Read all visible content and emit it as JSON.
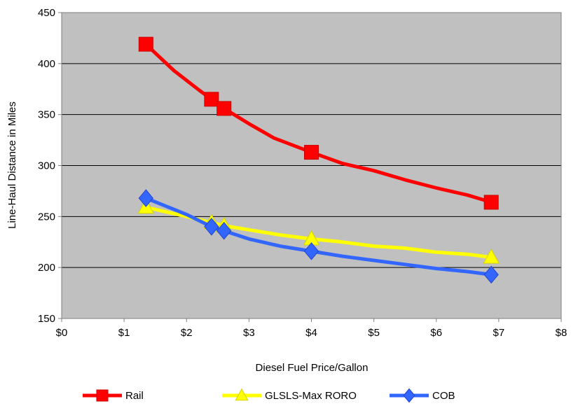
{
  "chart_data": {
    "type": "line",
    "xlabel": "Diesel Fuel Price/Gallon",
    "ylabel": "Line-Haul Distance in Miles",
    "xlim": [
      0,
      8
    ],
    "ylim": [
      150,
      450
    ],
    "x_ticks": [
      0,
      1,
      2,
      3,
      4,
      5,
      6,
      7,
      8
    ],
    "x_tick_labels": [
      "$0",
      "$1",
      "$2",
      "$3",
      "$4",
      "$5",
      "$6",
      "$7",
      "$8"
    ],
    "y_ticks": [
      150,
      200,
      250,
      300,
      350,
      400,
      450
    ],
    "y_tick_labels": [
      "150",
      "200",
      "250",
      "300",
      "350",
      "400",
      "450"
    ],
    "plot_background": "#c0c0c0",
    "grid": "horizontal",
    "legend_position": "bottom",
    "series": [
      {
        "name": "Rail",
        "color": "#ff0000",
        "marker": "square",
        "x": [
          1.35,
          2.4,
          2.6,
          4.0,
          6.88
        ],
        "y": [
          419,
          365,
          356,
          313,
          264
        ],
        "curve_x": [
          1.35,
          1.8,
          2.2,
          2.4,
          2.6,
          3.0,
          3.4,
          4.0,
          4.5,
          5.0,
          5.5,
          6.0,
          6.5,
          6.88
        ],
        "curve_y": [
          419,
          393,
          374,
          365,
          356,
          341,
          327,
          313,
          302,
          295,
          286,
          278,
          271,
          264
        ]
      },
      {
        "name": "GLSLS-Max RORO",
        "color": "#ffff00",
        "marker": "triangle",
        "x": [
          1.35,
          2.4,
          2.6,
          4.0,
          6.88
        ],
        "y": [
          259,
          244,
          241,
          228,
          210
        ],
        "curve_x": [
          1.35,
          2.0,
          2.4,
          2.6,
          3.0,
          3.5,
          4.0,
          4.5,
          5.0,
          5.5,
          6.0,
          6.5,
          6.88
        ],
        "curve_y": [
          259,
          250,
          244,
          241,
          237,
          232,
          228,
          225,
          221,
          219,
          215,
          213,
          210
        ]
      },
      {
        "name": "COB",
        "color": "#3366ff",
        "marker": "diamond",
        "x": [
          1.35,
          2.4,
          2.6,
          4.0,
          6.88
        ],
        "y": [
          268,
          240,
          236,
          216,
          193
        ],
        "curve_x": [
          1.35,
          2.0,
          2.4,
          2.6,
          3.0,
          3.5,
          4.0,
          4.5,
          5.0,
          5.5,
          6.0,
          6.5,
          6.88
        ],
        "curve_y": [
          268,
          252,
          240,
          236,
          228,
          221,
          216,
          211,
          207,
          203,
          199,
          196,
          193
        ]
      }
    ]
  }
}
